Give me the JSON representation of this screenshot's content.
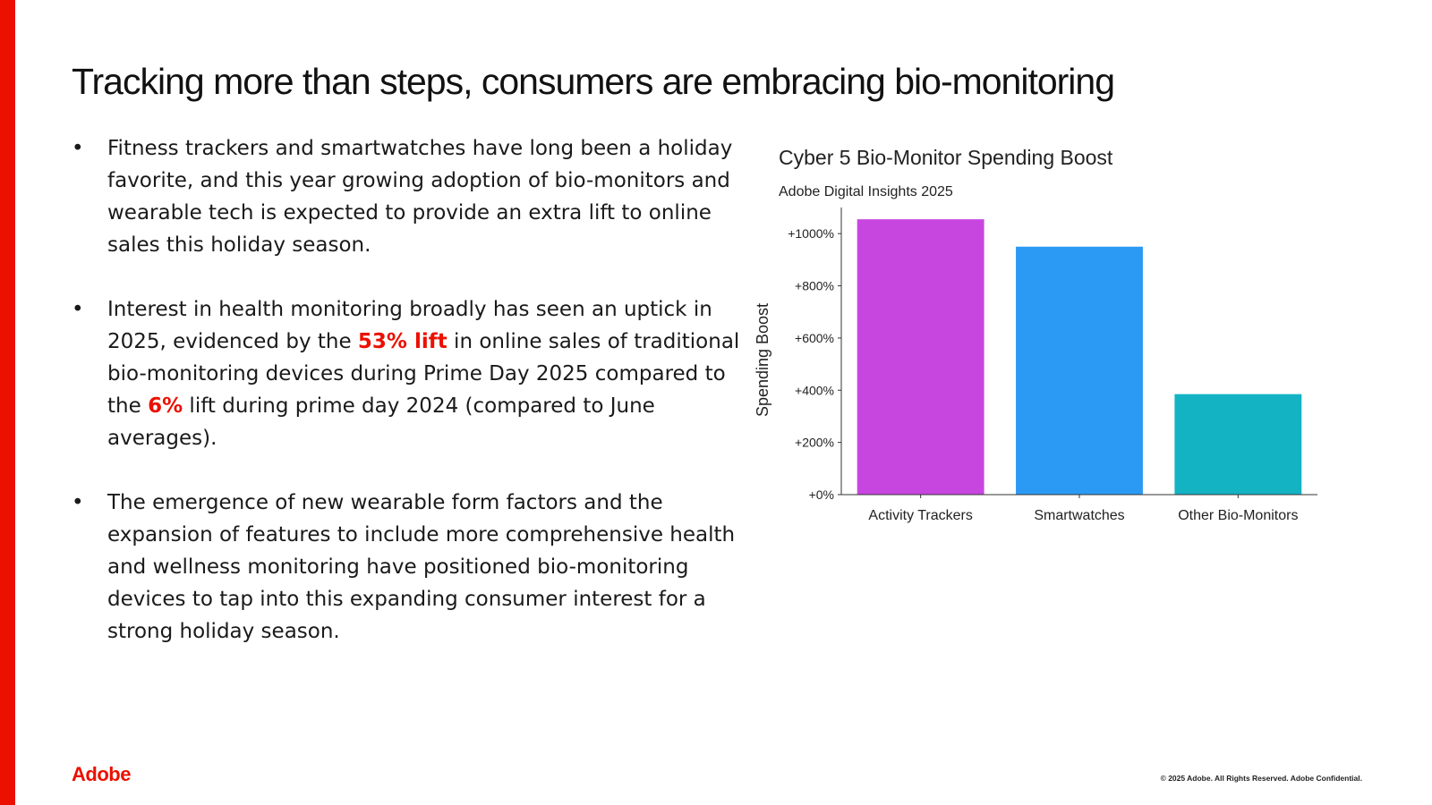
{
  "slide": {
    "title": "Tracking more than steps, consumers are embracing bio-monitoring",
    "bullet_marker": "•",
    "bullets": [
      {
        "text_before": "Fitness trackers and smartwatches have long been a holiday favorite, and this year growing adoption of bio-monitors and wearable tech is expected to provide an extra lift to online sales this holiday season."
      },
      {
        "text_before": "Interest in health monitoring broadly has seen an uptick in 2025, evidenced by the ",
        "highlight_1": "53% lift",
        "text_middle": " in online sales of traditional bio-monitoring devices during Prime Day 2025 compared to the ",
        "highlight_2": "6%",
        "text_after": " lift during prime day 2024 (compared to June averages)."
      },
      {
        "text_before": "The emergence of new wearable form factors and the expansion of features to include more comprehensive health and wellness monitoring have positioned bio-monitoring devices to tap into this expanding consumer interest for a strong holiday season."
      }
    ]
  },
  "footer": {
    "logo": "Adobe",
    "copyright": "© 2025 Adobe. All Rights Reserved. Adobe Confidential."
  },
  "colors": {
    "accent": "#eb1000",
    "bar_colors": [
      "#c846e0",
      "#2b9af5",
      "#13b3c4"
    ]
  },
  "chart_data": {
    "type": "bar",
    "title": "Cyber 5 Bio-Monitor Spending Boost",
    "subtitle": "Adobe Digital Insights 2025",
    "xlabel": "",
    "ylabel": "Spending Boost",
    "categories": [
      "Activity Trackers",
      "Smartwatches",
      "Other Bio-Monitors"
    ],
    "values": [
      1055,
      950,
      385
    ],
    "ylim": [
      0,
      1100
    ],
    "yticks": [
      0,
      200,
      400,
      600,
      800,
      1000
    ],
    "ytick_labels": [
      "+0%",
      "+200%",
      "+400%",
      "+600%",
      "+800%",
      "+1000%"
    ],
    "grid": false,
    "legend": "none"
  }
}
